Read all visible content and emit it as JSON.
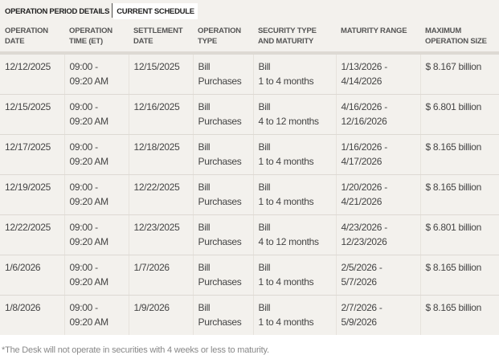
{
  "tabs": [
    {
      "label": "OPERATION PERIOD DETAILS",
      "active": false
    },
    {
      "label": "CURRENT SCHEDULE",
      "active": true
    }
  ],
  "columns": [
    "OPERATION DATE",
    "OPERATION TIME (ET)",
    "SETTLEMENT DATE",
    "OPERATION TYPE",
    "SECURITY TYPE AND MATURITY",
    "MATURITY RANGE",
    "MAXIMUM OPERATION SIZE"
  ],
  "rows": [
    {
      "op_date": "12/12/2025",
      "time1": "09:00 -",
      "time2": "09:20 AM",
      "settle": "12/15/2025",
      "type1": "Bill",
      "type2": "Purchases",
      "sec1": "Bill",
      "sec2": "1 to 4 months",
      "range1": "1/13/2026 -",
      "range2": "4/14/2026",
      "size": "$ 8.167 billion"
    },
    {
      "op_date": "12/15/2025",
      "time1": "09:00 -",
      "time2": "09:20 AM",
      "settle": "12/16/2025",
      "type1": "Bill",
      "type2": "Purchases",
      "sec1": "Bill",
      "sec2": "4 to 12 months",
      "range1": "4/16/2026 -",
      "range2": "12/16/2026",
      "size": "$ 6.801 billion"
    },
    {
      "op_date": "12/17/2025",
      "time1": "09:00 -",
      "time2": "09:20 AM",
      "settle": "12/18/2025",
      "type1": "Bill",
      "type2": "Purchases",
      "sec1": "Bill",
      "sec2": "1 to 4 months",
      "range1": "1/16/2026 -",
      "range2": "4/17/2026",
      "size": "$ 8.165 billion"
    },
    {
      "op_date": "12/19/2025",
      "time1": "09:00 -",
      "time2": "09:20 AM",
      "settle": "12/22/2025",
      "type1": "Bill",
      "type2": "Purchases",
      "sec1": "Bill",
      "sec2": "1 to 4 months",
      "range1": "1/20/2026 -",
      "range2": "4/21/2026",
      "size": "$ 8.165 billion"
    },
    {
      "op_date": "12/22/2025",
      "time1": "09:00 -",
      "time2": "09:20 AM",
      "settle": "12/23/2025",
      "type1": "Bill",
      "type2": "Purchases",
      "sec1": "Bill",
      "sec2": "4 to 12 months",
      "range1": "4/23/2026 -",
      "range2": "12/23/2026",
      "size": "$ 6.801 billion"
    },
    {
      "op_date": "1/6/2026",
      "time1": "09:00 -",
      "time2": "09:20 AM",
      "settle": "1/7/2026",
      "type1": "Bill",
      "type2": "Purchases",
      "sec1": "Bill",
      "sec2": "1 to 4 months",
      "range1": "2/5/2026 -",
      "range2": "5/7/2026",
      "size": "$ 8.165 billion"
    },
    {
      "op_date": "1/8/2026",
      "time1": "09:00 -",
      "time2": "09:20 AM",
      "settle": "1/9/2026",
      "type1": "Bill",
      "type2": "Purchases",
      "sec1": "Bill",
      "sec2": "1 to 4 months",
      "range1": "2/7/2026 -",
      "range2": "5/9/2026",
      "size": "$ 8.165 billion"
    }
  ],
  "footnote": "*The Desk will not operate in securities with 4 weeks or less to maturity."
}
